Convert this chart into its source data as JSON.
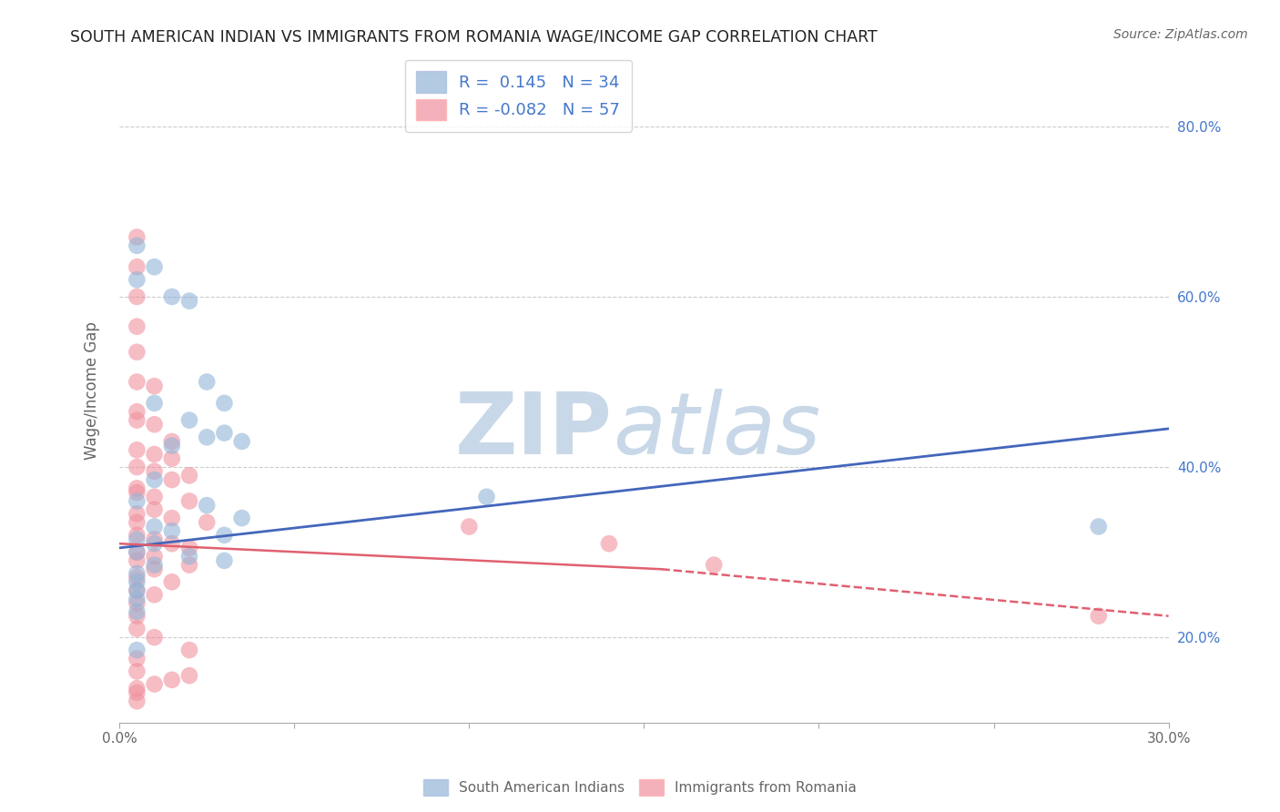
{
  "title": "SOUTH AMERICAN INDIAN VS IMMIGRANTS FROM ROMANIA WAGE/INCOME GAP CORRELATION CHART",
  "source": "Source: ZipAtlas.com",
  "ylabel": "Wage/Income Gap",
  "xlim": [
    0.0,
    0.3
  ],
  "ylim": [
    0.1,
    0.88
  ],
  "xticks": [
    0.0,
    0.05,
    0.1,
    0.15,
    0.2,
    0.25,
    0.3
  ],
  "xticklabels": [
    "0.0%",
    "",
    "",
    "",
    "",
    "",
    "30.0%"
  ],
  "yticks_right": [
    0.2,
    0.4,
    0.6,
    0.8
  ],
  "yticklabels_right": [
    "20.0%",
    "40.0%",
    "60.0%",
    "80.0%"
  ],
  "legend_R1": " 0.145",
  "legend_N1": "34",
  "legend_R2": "-0.082",
  "legend_N2": "57",
  "legend_label1": "South American Indians",
  "legend_label2": "Immigrants from Romania",
  "blue_color": "#92B4D7",
  "pink_color": "#F0919E",
  "blue_scatter": [
    [
      0.005,
      0.66
    ],
    [
      0.005,
      0.62
    ],
    [
      0.01,
      0.635
    ],
    [
      0.015,
      0.6
    ],
    [
      0.02,
      0.595
    ],
    [
      0.025,
      0.5
    ],
    [
      0.03,
      0.475
    ],
    [
      0.01,
      0.475
    ],
    [
      0.02,
      0.455
    ],
    [
      0.03,
      0.44
    ],
    [
      0.025,
      0.435
    ],
    [
      0.035,
      0.43
    ],
    [
      0.015,
      0.425
    ],
    [
      0.01,
      0.385
    ],
    [
      0.005,
      0.36
    ],
    [
      0.025,
      0.355
    ],
    [
      0.035,
      0.34
    ],
    [
      0.01,
      0.33
    ],
    [
      0.015,
      0.325
    ],
    [
      0.03,
      0.32
    ],
    [
      0.005,
      0.315
    ],
    [
      0.01,
      0.31
    ],
    [
      0.005,
      0.3
    ],
    [
      0.02,
      0.295
    ],
    [
      0.03,
      0.29
    ],
    [
      0.01,
      0.285
    ],
    [
      0.005,
      0.275
    ],
    [
      0.005,
      0.265
    ],
    [
      0.005,
      0.255
    ],
    [
      0.005,
      0.245
    ],
    [
      0.005,
      0.23
    ],
    [
      0.005,
      0.185
    ],
    [
      0.105,
      0.365
    ],
    [
      0.28,
      0.33
    ]
  ],
  "pink_scatter": [
    [
      0.005,
      0.67
    ],
    [
      0.005,
      0.635
    ],
    [
      0.005,
      0.6
    ],
    [
      0.005,
      0.565
    ],
    [
      0.005,
      0.535
    ],
    [
      0.005,
      0.5
    ],
    [
      0.01,
      0.495
    ],
    [
      0.005,
      0.465
    ],
    [
      0.005,
      0.455
    ],
    [
      0.01,
      0.45
    ],
    [
      0.015,
      0.43
    ],
    [
      0.005,
      0.42
    ],
    [
      0.01,
      0.415
    ],
    [
      0.015,
      0.41
    ],
    [
      0.005,
      0.4
    ],
    [
      0.01,
      0.395
    ],
    [
      0.02,
      0.39
    ],
    [
      0.015,
      0.385
    ],
    [
      0.005,
      0.375
    ],
    [
      0.005,
      0.37
    ],
    [
      0.01,
      0.365
    ],
    [
      0.02,
      0.36
    ],
    [
      0.01,
      0.35
    ],
    [
      0.005,
      0.345
    ],
    [
      0.015,
      0.34
    ],
    [
      0.005,
      0.335
    ],
    [
      0.025,
      0.335
    ],
    [
      0.005,
      0.32
    ],
    [
      0.01,
      0.315
    ],
    [
      0.015,
      0.31
    ],
    [
      0.02,
      0.305
    ],
    [
      0.005,
      0.3
    ],
    [
      0.01,
      0.295
    ],
    [
      0.005,
      0.29
    ],
    [
      0.02,
      0.285
    ],
    [
      0.01,
      0.28
    ],
    [
      0.005,
      0.27
    ],
    [
      0.015,
      0.265
    ],
    [
      0.005,
      0.255
    ],
    [
      0.01,
      0.25
    ],
    [
      0.005,
      0.24
    ],
    [
      0.005,
      0.225
    ],
    [
      0.005,
      0.21
    ],
    [
      0.01,
      0.2
    ],
    [
      0.02,
      0.185
    ],
    [
      0.005,
      0.175
    ],
    [
      0.005,
      0.16
    ],
    [
      0.02,
      0.155
    ],
    [
      0.015,
      0.15
    ],
    [
      0.01,
      0.145
    ],
    [
      0.005,
      0.14
    ],
    [
      0.005,
      0.135
    ],
    [
      0.005,
      0.125
    ],
    [
      0.1,
      0.33
    ],
    [
      0.14,
      0.31
    ],
    [
      0.17,
      0.285
    ],
    [
      0.28,
      0.225
    ]
  ],
  "blue_trendline_solid": [
    [
      0.0,
      0.305
    ],
    [
      0.3,
      0.445
    ]
  ],
  "pink_trendline_solid": [
    [
      0.0,
      0.31
    ],
    [
      0.155,
      0.28
    ]
  ],
  "pink_trendline_dashed": [
    [
      0.155,
      0.28
    ],
    [
      0.3,
      0.225
    ]
  ],
  "watermark_zip": "ZIP",
  "watermark_atlas": "atlas",
  "watermark_color": "#C8D8E8",
  "grid_color": "#CCCCCC",
  "grid_style": "--",
  "background_color": "#FFFFFF",
  "title_color": "#222222",
  "axis_color": "#666666",
  "legend_text_color": "#4477CC",
  "source_color": "#666666"
}
